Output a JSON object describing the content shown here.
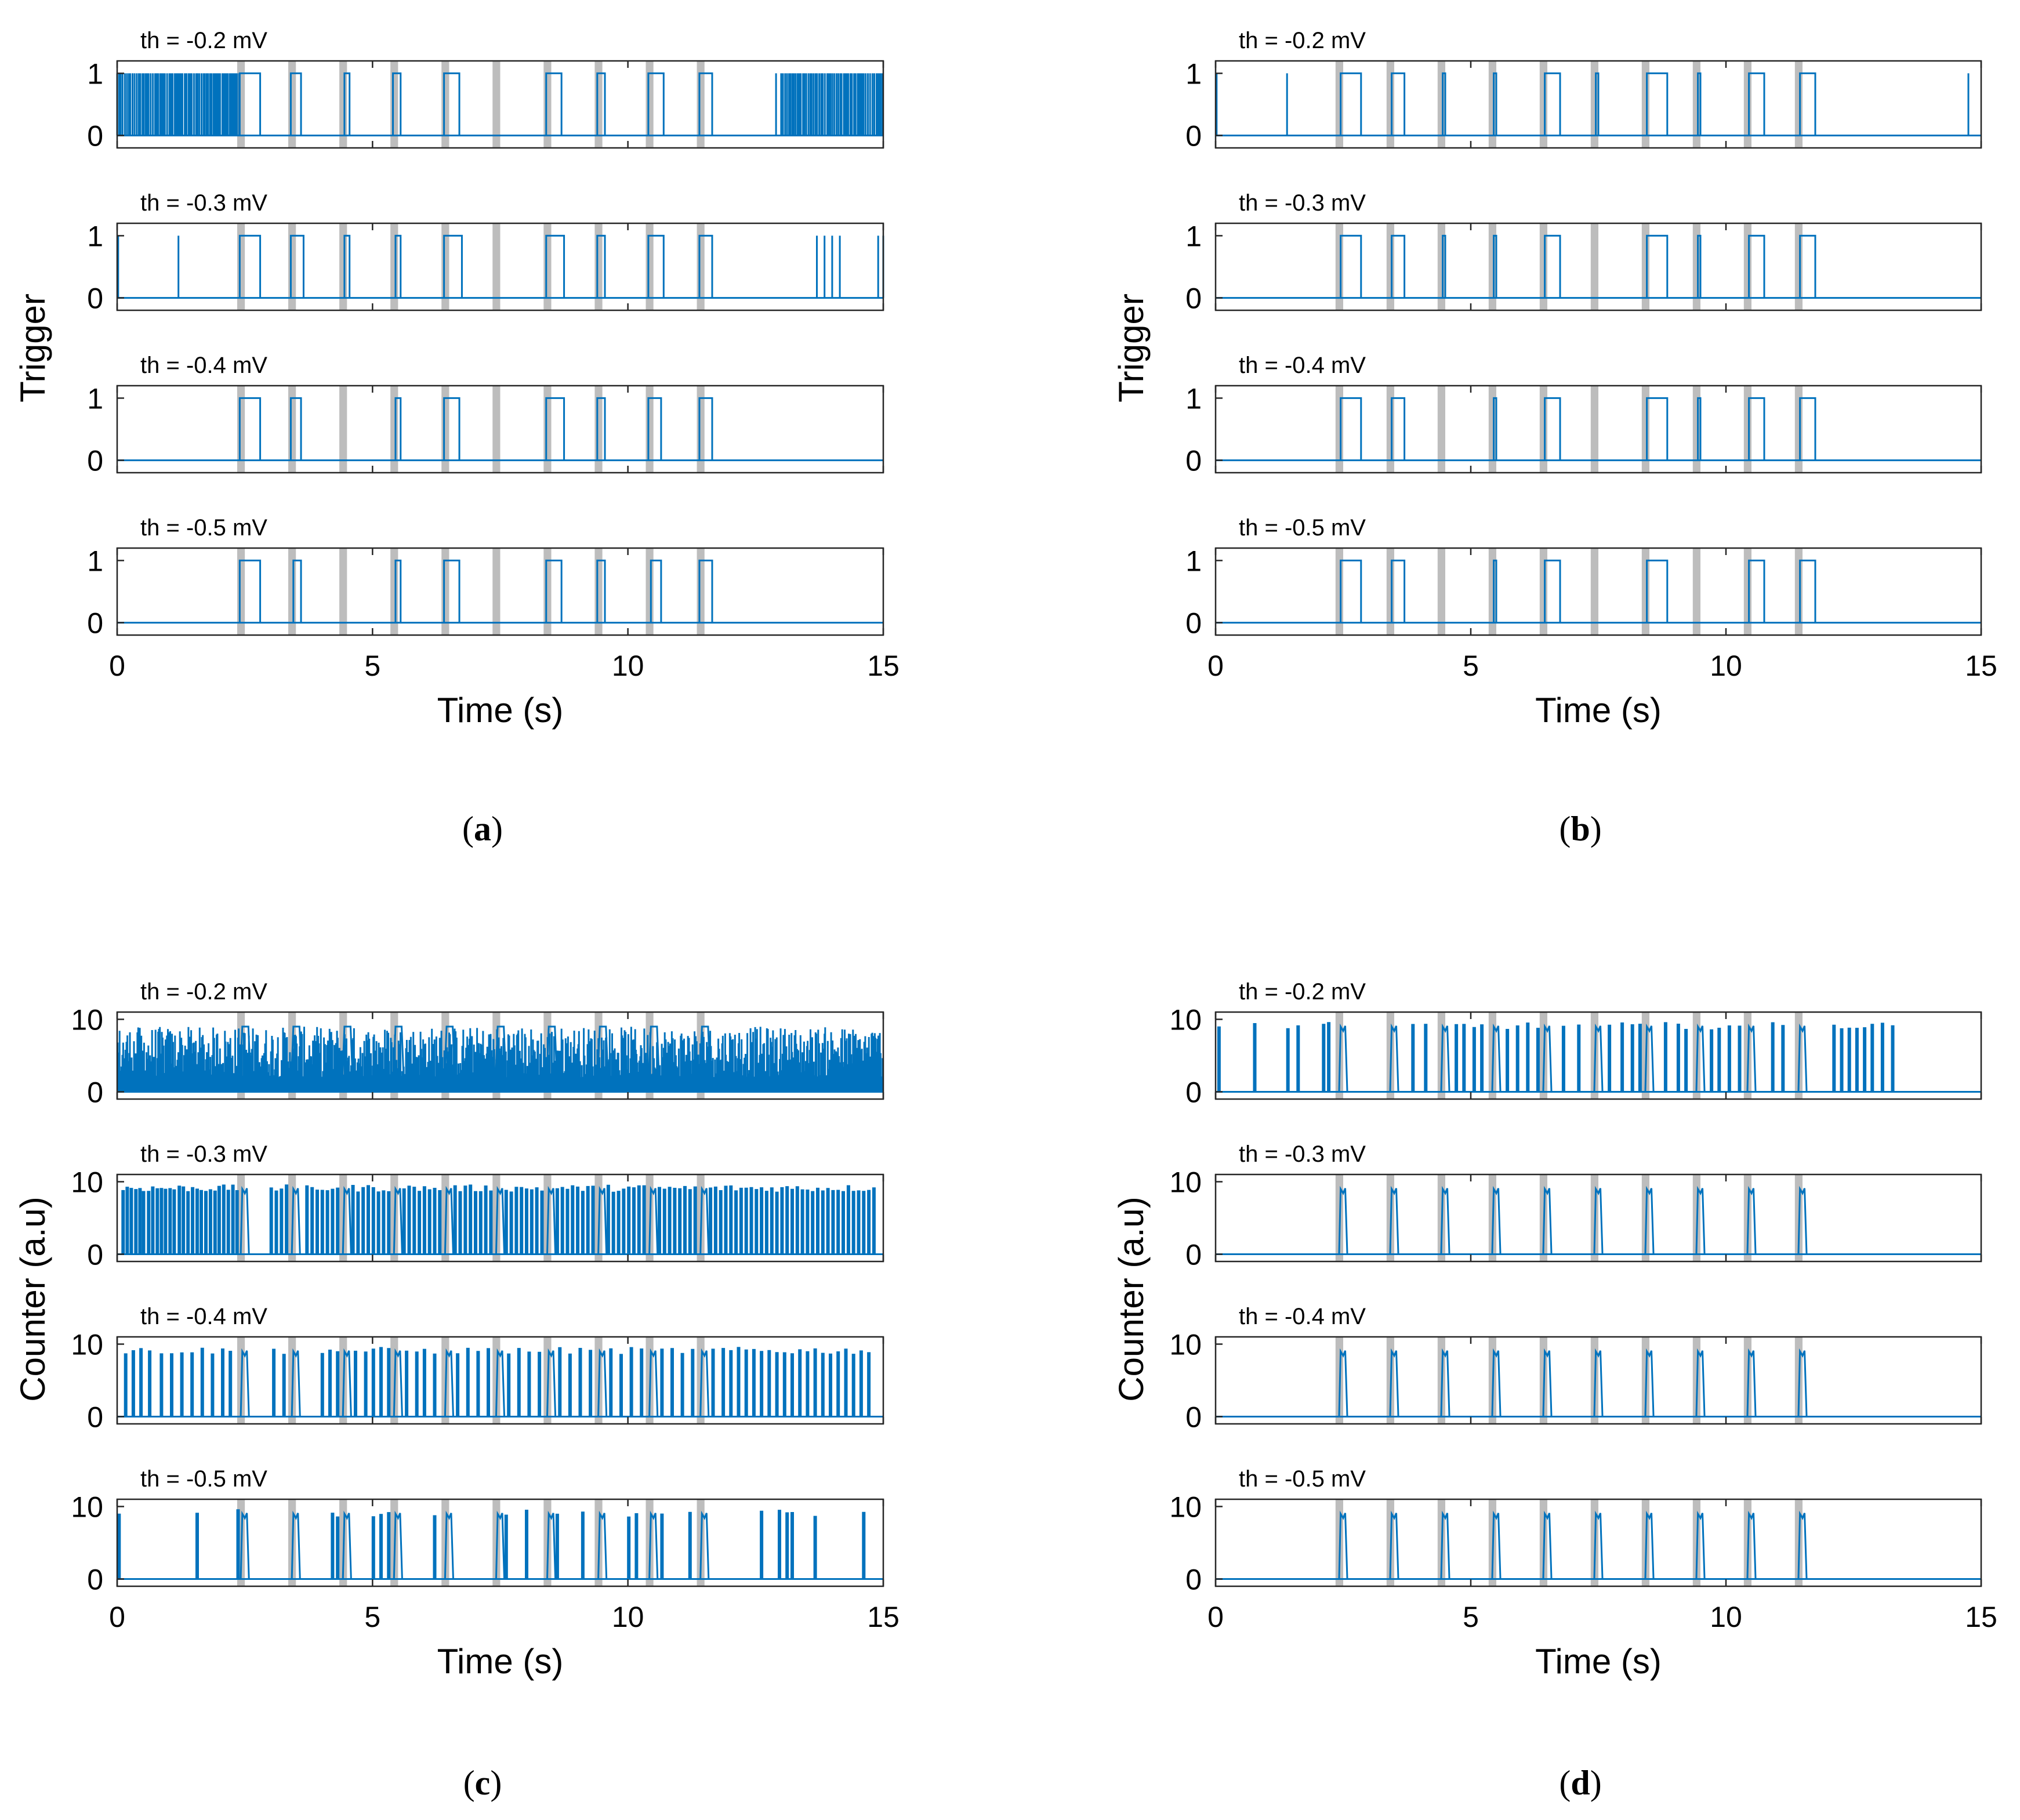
{
  "figure": {
    "trace_color": "#0072BD",
    "shade_color": "#BDBDBD",
    "captions": [
      "a",
      "b",
      "c",
      "d"
    ],
    "shaded_intervals": [
      [
        2.35,
        2.5
      ],
      [
        3.35,
        3.5
      ],
      [
        4.35,
        4.5
      ],
      [
        5.35,
        5.5
      ],
      [
        6.35,
        6.5
      ],
      [
        7.35,
        7.5
      ],
      [
        8.35,
        8.5
      ],
      [
        9.35,
        9.5
      ],
      [
        10.35,
        10.5
      ],
      [
        11.35,
        11.5
      ]
    ]
  },
  "chart_data": [
    {
      "type": "line",
      "panel": "a",
      "ylabel": "Trigger",
      "xlabel": "Time (s)",
      "xlim": [
        0,
        15
      ],
      "ylim": [
        -0.2,
        1.2
      ],
      "xticks": [
        "0",
        "5",
        "10",
        "15"
      ],
      "yticks": [
        "0",
        "1"
      ],
      "series": [
        {
          "name": "th = -0.2 mV",
          "mode": "noisy-trigger",
          "pulses": [
            [
              2.4,
              2.8
            ],
            [
              3.4,
              3.6
            ],
            [
              4.45,
              4.55
            ],
            [
              5.4,
              5.55
            ],
            [
              6.4,
              6.7
            ],
            [
              8.4,
              8.7
            ],
            [
              9.4,
              9.55
            ],
            [
              10.4,
              10.7
            ],
            [
              11.4,
              11.65
            ]
          ],
          "noise_ranges": [
            [
              0,
              2.4
            ],
            [
              13,
              15
            ]
          ],
          "extra_spikes": [
            12.9
          ]
        },
        {
          "name": "th = -0.3 mV",
          "mode": "trigger",
          "pulses": [
            [
              2.4,
              2.8
            ],
            [
              3.4,
              3.65
            ],
            [
              4.45,
              4.55
            ],
            [
              5.45,
              5.55
            ],
            [
              6.4,
              6.75
            ],
            [
              8.4,
              8.75
            ],
            [
              9.4,
              9.55
            ],
            [
              10.4,
              10.7
            ],
            [
              11.4,
              11.65
            ]
          ],
          "spikes": [
            0.02,
            1.2,
            13.7,
            13.85,
            14.0,
            14.15,
            14.9,
            15.0
          ]
        },
        {
          "name": "th = -0.4 mV",
          "mode": "trigger",
          "pulses": [
            [
              2.4,
              2.8
            ],
            [
              3.4,
              3.6
            ],
            [
              5.45,
              5.55
            ],
            [
              6.4,
              6.7
            ],
            [
              8.4,
              8.75
            ],
            [
              9.4,
              9.55
            ],
            [
              10.4,
              10.65
            ],
            [
              11.4,
              11.65
            ]
          ],
          "spikes": []
        },
        {
          "name": "th = -0.5 mV",
          "mode": "trigger",
          "pulses": [
            [
              2.4,
              2.8
            ],
            [
              3.45,
              3.6
            ],
            [
              5.45,
              5.55
            ],
            [
              6.4,
              6.7
            ],
            [
              8.4,
              8.7
            ],
            [
              9.4,
              9.55
            ],
            [
              10.45,
              10.65
            ],
            [
              11.4,
              11.65
            ]
          ],
          "spikes": []
        }
      ]
    },
    {
      "type": "line",
      "panel": "b",
      "ylabel": "Trigger",
      "xlabel": "Time (s)",
      "xlim": [
        0,
        15
      ],
      "ylim": [
        -0.2,
        1.2
      ],
      "xticks": [
        "0",
        "5",
        "10",
        "15"
      ],
      "yticks": [
        "0",
        "1"
      ],
      "series": [
        {
          "name": "th = -0.2 mV",
          "mode": "trigger",
          "pulses": [
            [
              2.45,
              2.85
            ],
            [
              3.45,
              3.7
            ],
            [
              4.45,
              4.5
            ],
            [
              5.45,
              5.5
            ],
            [
              6.45,
              6.75
            ],
            [
              7.45,
              7.5
            ],
            [
              8.45,
              8.85
            ],
            [
              9.45,
              9.5
            ],
            [
              10.45,
              10.75
            ],
            [
              11.45,
              11.75
            ]
          ],
          "spikes": [
            0.02,
            1.4,
            14.75
          ]
        },
        {
          "name": "th = -0.3 mV",
          "mode": "trigger",
          "pulses": [
            [
              2.45,
              2.85
            ],
            [
              3.45,
              3.7
            ],
            [
              4.45,
              4.5
            ],
            [
              5.45,
              5.5
            ],
            [
              6.45,
              6.75
            ],
            [
              8.45,
              8.85
            ],
            [
              9.45,
              9.5
            ],
            [
              10.45,
              10.75
            ],
            [
              11.45,
              11.75
            ]
          ],
          "spikes": []
        },
        {
          "name": "th = -0.4 mV",
          "mode": "trigger",
          "pulses": [
            [
              2.45,
              2.85
            ],
            [
              3.45,
              3.7
            ],
            [
              5.45,
              5.5
            ],
            [
              6.45,
              6.75
            ],
            [
              8.45,
              8.85
            ],
            [
              9.45,
              9.5
            ],
            [
              10.45,
              10.75
            ],
            [
              11.45,
              11.75
            ]
          ],
          "spikes": []
        },
        {
          "name": "th = -0.5 mV",
          "mode": "trigger",
          "pulses": [
            [
              2.45,
              2.85
            ],
            [
              3.45,
              3.7
            ],
            [
              5.45,
              5.5
            ],
            [
              6.45,
              6.75
            ],
            [
              8.45,
              8.85
            ],
            [
              10.45,
              10.75
            ],
            [
              11.45,
              11.75
            ]
          ],
          "spikes": []
        }
      ]
    },
    {
      "type": "line",
      "panel": "c",
      "ylabel": "Counter (a.u)",
      "xlabel": "Time (s)",
      "xlim": [
        0,
        15
      ],
      "ylim": [
        -1,
        11
      ],
      "xticks": [
        "0",
        "5",
        "10",
        "15"
      ],
      "yticks": [
        "0",
        "10"
      ],
      "series": [
        {
          "name": "th = -0.2 mV",
          "mode": "dense-counter",
          "bursts": [
            2.45,
            3.45,
            4.45,
            5.45,
            6.45,
            7.45,
            8.45,
            9.45,
            10.45,
            11.45
          ]
        },
        {
          "name": "th = -0.3 mV",
          "mode": "spike-counter",
          "spikes": [
            0.1,
            0.18,
            0.26,
            0.35,
            0.43,
            0.5,
            0.6,
            0.68,
            0.77,
            0.85,
            0.93,
            1.02,
            1.1,
            1.2,
            1.28,
            1.37,
            1.46,
            1.55,
            1.63,
            1.72,
            1.81,
            1.9,
            1.98,
            2.07,
            2.16,
            2.25,
            2.33,
            3.0,
            3.1,
            3.2,
            3.3,
            3.7,
            3.8,
            3.9,
            4.0,
            4.1,
            4.2,
            4.3,
            4.6,
            4.7,
            4.8,
            4.9,
            5.0,
            5.1,
            5.2,
            5.3,
            5.6,
            5.7,
            5.8,
            5.9,
            6.0,
            6.1,
            6.2,
            6.3,
            6.6,
            6.7,
            6.8,
            6.9,
            7.0,
            7.1,
            7.2,
            7.3,
            7.6,
            7.7,
            7.8,
            7.9,
            8.0,
            8.1,
            8.2,
            8.3,
            8.6,
            8.7,
            8.8,
            8.9,
            9.0,
            9.1,
            9.2,
            9.3,
            9.6,
            9.7,
            9.8,
            9.9,
            10.0,
            10.1,
            10.2,
            10.3,
            10.6,
            10.7,
            10.8,
            10.9,
            11.0,
            11.1,
            11.2,
            11.3,
            11.6,
            11.7,
            11.8,
            11.9,
            12.0,
            12.1,
            12.2,
            12.3,
            12.4,
            12.5,
            12.6,
            12.7,
            12.8,
            12.9,
            13.0,
            13.1,
            13.2,
            13.3,
            13.4,
            13.5,
            13.6,
            13.7,
            13.8,
            13.9,
            14.0,
            14.1,
            14.2,
            14.3,
            14.4,
            14.5,
            14.6,
            14.7,
            14.8
          ],
          "bursts": [
            2.45,
            3.45,
            4.45,
            5.45,
            6.45,
            7.45,
            8.45,
            9.45,
            10.45,
            11.45
          ]
        },
        {
          "name": "th = -0.4 mV",
          "mode": "spike-counter",
          "spikes": [
            0.15,
            0.3,
            0.45,
            0.62,
            0.85,
            1.05,
            1.25,
            1.45,
            1.65,
            1.85,
            2.05,
            2.2,
            3.05,
            3.25,
            4.0,
            4.15,
            4.3,
            4.65,
            4.85,
            5.0,
            5.15,
            5.3,
            5.65,
            5.85,
            6.0,
            6.2,
            6.65,
            6.85,
            7.05,
            7.25,
            7.65,
            7.85,
            8.05,
            8.25,
            8.65,
            8.85,
            9.05,
            9.25,
            9.65,
            9.85,
            10.05,
            10.25,
            10.65,
            10.85,
            11.05,
            11.25,
            11.65,
            11.85,
            12.0,
            12.15,
            12.3,
            12.45,
            12.6,
            12.75,
            12.9,
            13.05,
            13.2,
            13.35,
            13.5,
            13.65,
            13.8,
            13.95,
            14.1,
            14.25,
            14.4,
            14.55,
            14.7
          ],
          "bursts": [
            2.45,
            3.45,
            4.45,
            5.45,
            6.45,
            7.45,
            8.45,
            9.45,
            10.45,
            11.45
          ]
        },
        {
          "name": "th = -0.5 mV",
          "mode": "spike-counter",
          "spikes": [
            0.02,
            1.55,
            2.35,
            4.2,
            4.3,
            5.0,
            5.15,
            5.3,
            6.2,
            7.6,
            8.0,
            8.6,
            9.1,
            10.0,
            10.15,
            10.65,
            11.2,
            12.6,
            12.95,
            13.1,
            13.2,
            13.65,
            14.6
          ],
          "bursts": [
            2.45,
            3.45,
            4.45,
            5.45,
            6.45,
            7.45,
            8.45,
            9.45,
            10.45,
            11.45
          ]
        }
      ]
    },
    {
      "type": "line",
      "panel": "d",
      "ylabel": "Counter (a.u)",
      "xlabel": "Time (s)",
      "xlim": [
        0,
        15
      ],
      "ylim": [
        -1,
        11
      ],
      "xticks": [
        "0",
        "5",
        "10",
        "15"
      ],
      "yticks": [
        "0",
        "10"
      ],
      "series": [
        {
          "name": "th = -0.2 mV",
          "mode": "spike-counter",
          "spikes": [
            0.05,
            0.75,
            1.4,
            1.6,
            2.1,
            2.2,
            3.85,
            4.1,
            4.7,
            4.85,
            5.05,
            5.2,
            5.7,
            5.9,
            6.1,
            6.3,
            6.8,
            7.1,
            7.7,
            7.95,
            8.15,
            8.3,
            8.8,
            9.05,
            9.2,
            9.7,
            9.85,
            10.05,
            10.25,
            10.9,
            11.1,
            12.1,
            12.25,
            12.4,
            12.55,
            12.7,
            12.85,
            13.05,
            13.25
          ],
          "bursts": [
            2.45,
            3.45,
            4.45,
            5.45,
            6.45,
            7.45,
            8.45,
            9.45,
            10.45,
            11.45
          ]
        },
        {
          "name": "th = -0.3 mV",
          "mode": "spike-counter",
          "spikes": [],
          "bursts": [
            2.45,
            3.45,
            4.45,
            5.45,
            6.45,
            7.45,
            8.45,
            9.45,
            10.45,
            11.45
          ]
        },
        {
          "name": "th = -0.4 mV",
          "mode": "spike-counter",
          "spikes": [],
          "bursts": [
            2.45,
            3.45,
            4.45,
            5.45,
            6.45,
            7.45,
            8.45,
            9.45,
            10.45,
            11.45
          ]
        },
        {
          "name": "th = -0.5 mV",
          "mode": "spike-counter",
          "spikes": [],
          "bursts": [
            2.45,
            3.45,
            4.45,
            5.45,
            6.45,
            7.45,
            8.45,
            9.45,
            10.45,
            11.45
          ]
        }
      ]
    }
  ]
}
